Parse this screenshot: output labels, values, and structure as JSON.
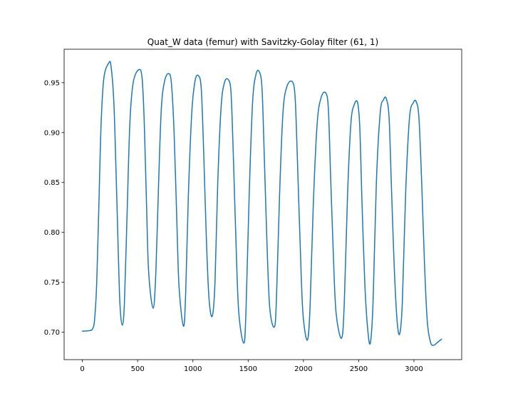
{
  "chart_data": {
    "type": "line",
    "title": "Quat_W data (femur) with Savitzky-Golay filter (61, 1)",
    "xlabel": "",
    "ylabel": "",
    "xlim": [
      -165,
      3432
    ],
    "ylim": [
      0.6725,
      0.9835
    ],
    "xticks": [
      0,
      500,
      1000,
      1500,
      2000,
      2500,
      3000
    ],
    "xtick_labels": [
      "0",
      "500",
      "1000",
      "1500",
      "2000",
      "2500",
      "3000"
    ],
    "yticks": [
      0.7,
      0.75,
      0.8,
      0.85,
      0.9,
      0.95
    ],
    "ytick_labels": [
      "0.70",
      "0.75",
      "0.80",
      "0.85",
      "0.90",
      "0.95"
    ],
    "grid": false,
    "legend": "none",
    "series_color": "#1f77b4",
    "series": [
      {
        "keypoints": [
          [
            0,
            0.701
          ],
          [
            60,
            0.7015
          ],
          [
            90,
            0.703
          ],
          [
            110,
            0.712
          ],
          [
            130,
            0.75
          ],
          [
            150,
            0.83
          ],
          [
            170,
            0.91
          ],
          [
            195,
            0.955
          ],
          [
            240,
            0.97
          ],
          [
            260,
            0.966
          ],
          [
            285,
            0.93
          ],
          [
            305,
            0.86
          ],
          [
            325,
            0.78
          ],
          [
            340,
            0.728
          ],
          [
            360,
            0.707
          ],
          [
            380,
            0.728
          ],
          [
            405,
            0.82
          ],
          [
            430,
            0.91
          ],
          [
            460,
            0.95
          ],
          [
            510,
            0.963
          ],
          [
            540,
            0.955
          ],
          [
            560,
            0.91
          ],
          [
            580,
            0.83
          ],
          [
            600,
            0.76
          ],
          [
            640,
            0.724
          ],
          [
            665,
            0.76
          ],
          [
            690,
            0.85
          ],
          [
            715,
            0.925
          ],
          [
            745,
            0.952
          ],
          [
            780,
            0.959
          ],
          [
            805,
            0.95
          ],
          [
            830,
            0.9
          ],
          [
            855,
            0.81
          ],
          [
            875,
            0.745
          ],
          [
            915,
            0.706
          ],
          [
            935,
            0.74
          ],
          [
            960,
            0.84
          ],
          [
            990,
            0.92
          ],
          [
            1020,
            0.952
          ],
          [
            1050,
            0.957
          ],
          [
            1075,
            0.945
          ],
          [
            1095,
            0.89
          ],
          [
            1120,
            0.8
          ],
          [
            1145,
            0.735
          ],
          [
            1175,
            0.716
          ],
          [
            1200,
            0.75
          ],
          [
            1225,
            0.85
          ],
          [
            1255,
            0.925
          ],
          [
            1285,
            0.95
          ],
          [
            1320,
            0.953
          ],
          [
            1345,
            0.94
          ],
          [
            1365,
            0.88
          ],
          [
            1390,
            0.79
          ],
          [
            1415,
            0.72
          ],
          [
            1460,
            0.689
          ],
          [
            1480,
            0.72
          ],
          [
            1510,
            0.84
          ],
          [
            1540,
            0.93
          ],
          [
            1570,
            0.958
          ],
          [
            1600,
            0.961
          ],
          [
            1625,
            0.945
          ],
          [
            1645,
            0.88
          ],
          [
            1670,
            0.79
          ],
          [
            1695,
            0.725
          ],
          [
            1735,
            0.705
          ],
          [
            1755,
            0.73
          ],
          [
            1785,
            0.84
          ],
          [
            1815,
            0.92
          ],
          [
            1850,
            0.946
          ],
          [
            1900,
            0.951
          ],
          [
            1925,
            0.935
          ],
          [
            1945,
            0.875
          ],
          [
            1970,
            0.79
          ],
          [
            1995,
            0.72
          ],
          [
            2035,
            0.692
          ],
          [
            2060,
            0.725
          ],
          [
            2090,
            0.83
          ],
          [
            2125,
            0.91
          ],
          [
            2160,
            0.935
          ],
          [
            2200,
            0.94
          ],
          [
            2225,
            0.925
          ],
          [
            2245,
            0.86
          ],
          [
            2270,
            0.78
          ],
          [
            2295,
            0.72
          ],
          [
            2345,
            0.694
          ],
          [
            2370,
            0.73
          ],
          [
            2400,
            0.84
          ],
          [
            2430,
            0.91
          ],
          [
            2460,
            0.928
          ],
          [
            2490,
            0.93
          ],
          [
            2510,
            0.905
          ],
          [
            2530,
            0.83
          ],
          [
            2555,
            0.75
          ],
          [
            2580,
            0.705
          ],
          [
            2605,
            0.689
          ],
          [
            2630,
            0.73
          ],
          [
            2660,
            0.85
          ],
          [
            2695,
            0.92
          ],
          [
            2725,
            0.933
          ],
          [
            2750,
            0.934
          ],
          [
            2775,
            0.915
          ],
          [
            2795,
            0.85
          ],
          [
            2820,
            0.77
          ],
          [
            2845,
            0.715
          ],
          [
            2870,
            0.698
          ],
          [
            2895,
            0.73
          ],
          [
            2925,
            0.84
          ],
          [
            2960,
            0.915
          ],
          [
            2995,
            0.93
          ],
          [
            3020,
            0.931
          ],
          [
            3045,
            0.915
          ],
          [
            3070,
            0.85
          ],
          [
            3095,
            0.77
          ],
          [
            3120,
            0.712
          ],
          [
            3150,
            0.69
          ],
          [
            3180,
            0.687
          ],
          [
            3215,
            0.69
          ],
          [
            3250,
            0.693
          ]
        ]
      }
    ]
  }
}
